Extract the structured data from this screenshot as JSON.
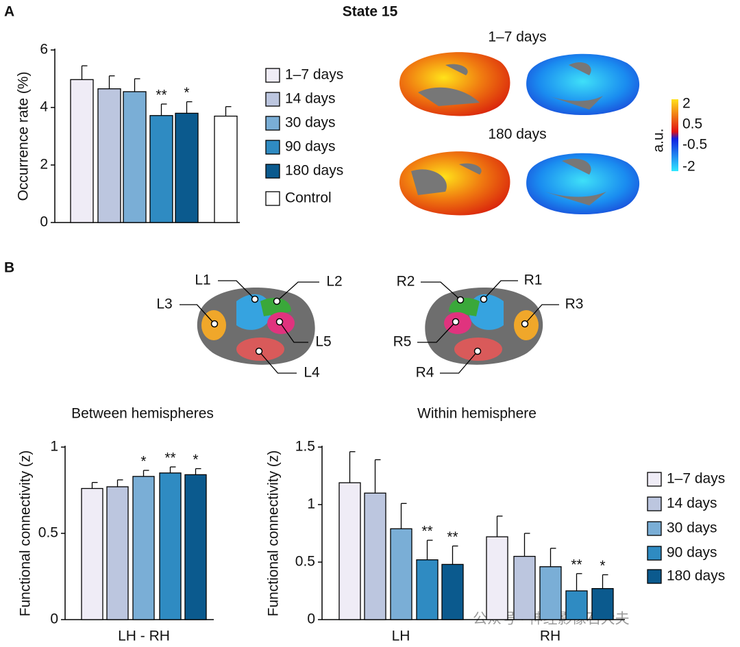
{
  "panels": [
    "A",
    "B"
  ],
  "chart_data": [
    {
      "type": "bar",
      "title": "State 15",
      "ylabel": "Occurrence rate (%)",
      "categories": [
        null
      ],
      "ylim": [
        0,
        6
      ],
      "yticks": [
        0,
        2,
        4,
        6
      ],
      "legend": true,
      "series": [
        {
          "name": "1–7 days",
          "color": "#efecf6",
          "values": [
            4.97
          ],
          "errors": [
            0.48
          ],
          "significance": [
            null
          ]
        },
        {
          "name": "14 days",
          "color": "#bcc6df",
          "values": [
            4.65
          ],
          "errors": [
            0.45
          ],
          "significance": [
            null
          ]
        },
        {
          "name": "30 days",
          "color": "#7aaed6",
          "values": [
            4.55
          ],
          "errors": [
            0.45
          ],
          "significance": [
            null
          ]
        },
        {
          "name": "90 days",
          "color": "#2f8bc2",
          "values": [
            3.72
          ],
          "errors": [
            0.4
          ],
          "significance": [
            "**"
          ]
        },
        {
          "name": "180 days",
          "color": "#0b5a8e",
          "values": [
            3.8
          ],
          "errors": [
            0.4
          ],
          "significance": [
            "*"
          ]
        },
        {
          "name": "Control",
          "color": "#ffffff",
          "values": [
            3.7
          ],
          "errors": [
            0.33
          ],
          "significance": [
            null
          ]
        }
      ]
    },
    {
      "type": "bar",
      "title": "Between hemispheres",
      "ylabel": "Functional connectivity (z)",
      "categories": [
        "LH - RH"
      ],
      "ylim": [
        0,
        1
      ],
      "yticks": [
        0,
        0.5,
        1
      ],
      "legend": false,
      "series": [
        {
          "name": "1–7 days",
          "color": "#efecf6",
          "values": [
            0.76
          ],
          "errors": [
            0.035
          ],
          "significance": [
            null
          ]
        },
        {
          "name": "14 days",
          "color": "#bcc6df",
          "values": [
            0.77
          ],
          "errors": [
            0.04
          ],
          "significance": [
            null
          ]
        },
        {
          "name": "30 days",
          "color": "#7aaed6",
          "values": [
            0.83
          ],
          "errors": [
            0.035
          ],
          "significance": [
            "*"
          ]
        },
        {
          "name": "90 days",
          "color": "#2f8bc2",
          "values": [
            0.85
          ],
          "errors": [
            0.035
          ],
          "significance": [
            "**"
          ]
        },
        {
          "name": "180 days",
          "color": "#0b5a8e",
          "values": [
            0.84
          ],
          "errors": [
            0.035
          ],
          "significance": [
            "*"
          ]
        }
      ]
    },
    {
      "type": "bar",
      "title": "Within hemisphere",
      "ylabel": "Functional connectivity (z)",
      "categories": [
        "LH",
        "RH"
      ],
      "ylim": [
        0,
        1.5
      ],
      "yticks": [
        0,
        0.5,
        1,
        1.5
      ],
      "legend": true,
      "series": [
        {
          "name": "1–7 days",
          "color": "#efecf6",
          "values": [
            1.19,
            0.72
          ],
          "errors": [
            0.27,
            0.18
          ],
          "significance": [
            null,
            null
          ]
        },
        {
          "name": "14 days",
          "color": "#bcc6df",
          "values": [
            1.1,
            0.55
          ],
          "errors": [
            0.29,
            0.2
          ],
          "significance": [
            null,
            null
          ]
        },
        {
          "name": "30 days",
          "color": "#7aaed6",
          "values": [
            0.79,
            0.46
          ],
          "errors": [
            0.22,
            0.16
          ],
          "significance": [
            null,
            null
          ]
        },
        {
          "name": "90 days",
          "color": "#2f8bc2",
          "values": [
            0.52,
            0.25
          ],
          "errors": [
            0.17,
            0.15
          ],
          "significance": [
            "**",
            "**"
          ]
        },
        {
          "name": "180 days",
          "color": "#0b5a8e",
          "values": [
            0.48,
            0.27
          ],
          "errors": [
            0.16,
            0.12
          ],
          "significance": [
            "**",
            "*"
          ]
        }
      ]
    }
  ],
  "brain_maps": {
    "labels": [
      "1–7 days",
      "180 days"
    ],
    "colorbar": {
      "label": "a.u.",
      "ticks": [
        2,
        0.5,
        -0.5,
        -2
      ]
    }
  },
  "regions": {
    "left": [
      "L1",
      "L2",
      "L3",
      "L5",
      "L4"
    ],
    "right": [
      "R2",
      "R1",
      "R3",
      "R5",
      "R4"
    ]
  },
  "watermark": "公众号 · 神经影像石大夫"
}
